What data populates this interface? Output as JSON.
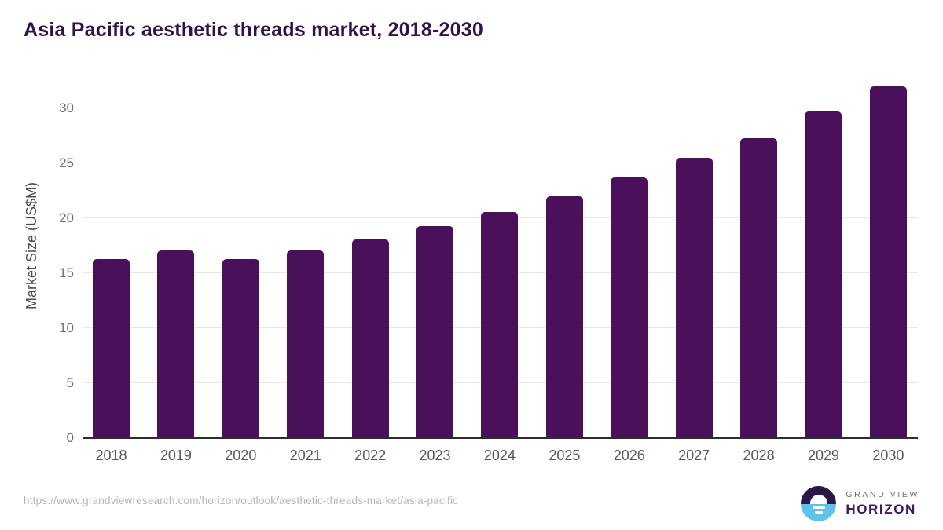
{
  "title": "Asia Pacific aesthetic threads market, 2018-2030",
  "chart_data": {
    "type": "bar",
    "title": "Asia Pacific aesthetic threads market, 2018-2030",
    "categories": [
      "2018",
      "2019",
      "2020",
      "2021",
      "2022",
      "2023",
      "2024",
      "2025",
      "2026",
      "2027",
      "2028",
      "2029",
      "2030"
    ],
    "values": [
      16.3,
      17.1,
      16.3,
      17.1,
      18.1,
      19.3,
      20.6,
      22.0,
      23.7,
      25.5,
      27.3,
      29.7,
      32.0
    ],
    "xlabel": "",
    "ylabel": "Market Size (US$M)",
    "yticks": [
      0,
      5,
      10,
      15,
      20,
      25,
      30
    ],
    "ylim": [
      0,
      32
    ],
    "grid": true,
    "legend_position": "none",
    "bar_color": "#4a1059"
  },
  "footer": {
    "source_url": "https://www.grandviewresearch.com/horizon/outlook/aesthetic-threads-market/asia-pacific",
    "logo": {
      "top_text": "GRAND VIEW",
      "bottom_text": "HORIZON",
      "icon": "sunrise-horizon-icon"
    }
  },
  "colors": {
    "bar": "#4a1059",
    "title_text": "#2e1249",
    "y_tick_text": "#6f7072",
    "x_tick_text": "#55565a",
    "gridline": "#e7e7e7",
    "axis_line": "#2d2d2d",
    "source_text": "#b5b5b5",
    "logo_navy": "#2c1844",
    "logo_blue": "#5ec2ef",
    "logo_text_gray": "#6f6f6f",
    "logo_text_purple": "#3a1b5c"
  }
}
